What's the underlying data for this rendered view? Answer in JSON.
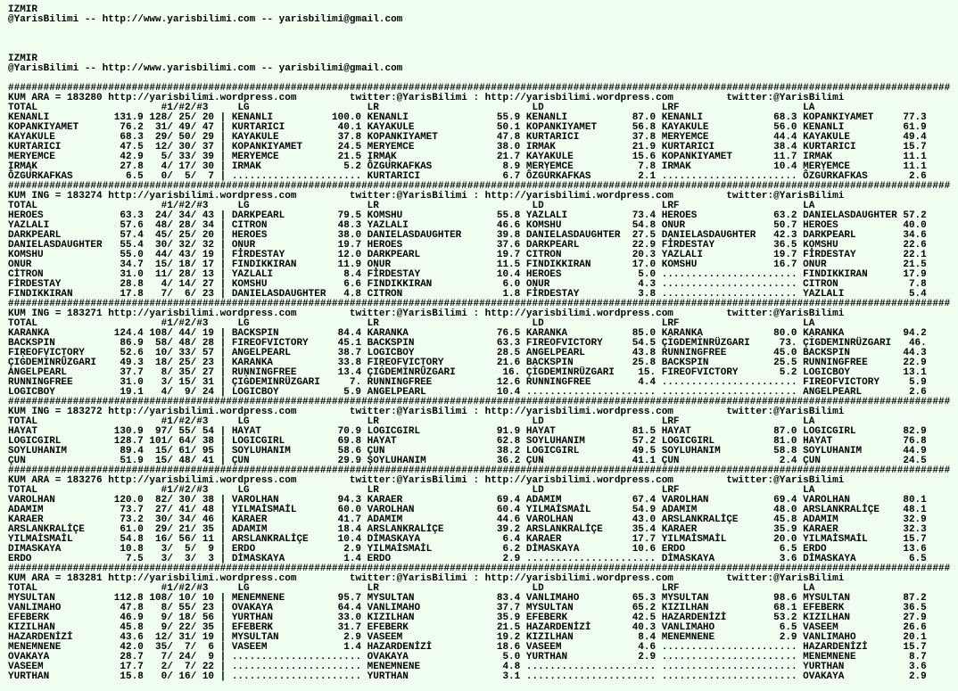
{
  "intro": [
    {
      "city": "IZMIR",
      "contact": "@YarisBilimi -- http://www.yarisbilimi.com -- yarisbilimi@gmail.com"
    },
    {
      "city": "IZMIR",
      "contact": "@YarisBilimi -- http://www.yarisbilimi.com -- yarisbilimi@gmail.com"
    }
  ],
  "rule_char": "#",
  "filler_char": ".",
  "count_sep": "/",
  "col_sep": "|",
  "link": {
    "url": "http://yarisbilimi.wordpress.com",
    "twitter": "twitter:@YarisBilimi",
    "sep": ":"
  },
  "header": {
    "total": "TOTAL",
    "counts": "#1/#2/#3",
    "cols": [
      "LG",
      "LR",
      "LD",
      "LRF",
      "LA"
    ]
  },
  "blocks": [
    {
      "title": "KUM ARA = 183280",
      "totals": [
        [
          "KENANLI",
          "131.9",
          128,
          25,
          20
        ],
        [
          "KOPANKIYAMET",
          "76.2",
          31,
          49,
          47
        ],
        [
          "KAYAKULE",
          "68.3",
          29,
          50,
          29
        ],
        [
          "KURTARICI",
          "47.5",
          12,
          30,
          37
        ],
        [
          "MERYEMCE",
          "42.9",
          5,
          33,
          39
        ],
        [
          "ĮRMĄK",
          "27.8",
          4,
          17,
          30
        ],
        [
          "ÖZGURKAFKAS",
          "6.5",
          0,
          5,
          7
        ]
      ],
      "cols": [
        [
          [
            "KENANLI",
            "100.0"
          ],
          [
            "KURTARICI",
            "40.1"
          ],
          [
            "KAYAKULE",
            "37.8"
          ],
          [
            "KOPANKIYAMET",
            "24.5"
          ],
          [
            "MERYEMCE",
            "21.5"
          ],
          [
            "IRMAK",
            "5.2"
          ],
          null
        ],
        [
          [
            "KENANLI",
            "55.9"
          ],
          [
            "KAYAKULE",
            "50.1"
          ],
          [
            "KOPANKIYAMET",
            "47.8"
          ],
          [
            "MERYEMCE",
            "38.0"
          ],
          [
            "ĮRMĄK",
            "21.7"
          ],
          [
            "ÖZGURKAFKAS",
            "8.9"
          ],
          [
            "KURTARICI",
            "6.7"
          ]
        ],
        [
          [
            "KENANLI",
            "87.0"
          ],
          [
            "KOPANKIYAMET",
            "56.8"
          ],
          [
            "KURTARICI",
            "37.8"
          ],
          [
            "IRMAK",
            "21.9"
          ],
          [
            "KAYAKULE",
            "15.6"
          ],
          [
            "ṂERỴEMCE",
            "7.8"
          ],
          [
            "ÖZGURKAFKAS",
            "2.1"
          ]
        ],
        [
          [
            "KENANLI",
            "68.3"
          ],
          [
            "KAYAKULE",
            "56.0"
          ],
          [
            "MERYEMCE",
            "44.4"
          ],
          [
            "KURTARICI",
            "38.4"
          ],
          [
            "KOPANKIYAMET",
            "11.7"
          ],
          [
            "IRMAK",
            "10.4"
          ],
          null
        ],
        [
          [
            "KOPANKIYAMET",
            "77.3"
          ],
          [
            "KENANLI",
            "61.9"
          ],
          [
            "KAYAKULE",
            "49.4"
          ],
          [
            "KURTARICI",
            "15.7"
          ],
          [
            "IRMAK",
            "11.1"
          ],
          [
            "ṂERỴEMCE",
            "11.1"
          ],
          [
            "ÖZGURKAFKAS",
            "2.6"
          ]
        ]
      ]
    },
    {
      "title": "KUM ING = 183274",
      "totals": [
        [
          "HEROES",
          "63.3",
          24,
          34,
          43
        ],
        [
          "YAZLALI",
          "57.6",
          48,
          28,
          34
        ],
        [
          "DARKPEARL",
          "57.4",
          45,
          25,
          20
        ],
        [
          "DANIELASDAUGHTER",
          "55.4",
          30,
          32,
          32
        ],
        [
          "KOMSHU",
          "55.0",
          44,
          43,
          19
        ],
        [
          "ONUR",
          "34.7",
          15,
          18,
          17
        ],
        [
          "CİTRON",
          "31.0",
          11,
          28,
          13
        ],
        [
          "FİRDESTAY",
          "28.8",
          4,
          14,
          27
        ],
        [
          "FINDIKKIRAN",
          "17.8",
          7,
          6,
          23
        ]
      ],
      "cols": [
        [
          [
            "DARKPEARL",
            "79.5"
          ],
          [
            "CITRON",
            "48.3"
          ],
          [
            "HEROES",
            "38.0"
          ],
          [
            "OṆUR",
            "19.7"
          ],
          [
            "FİRDESTAY",
            "12.0"
          ],
          [
            "FINDIKKIRAN",
            "11.9"
          ],
          [
            "YAZLALI",
            "8.4"
          ],
          [
            "KOMSHU",
            "6.6"
          ],
          [
            "DANIELASDAUGHTER",
            "4.8"
          ]
        ],
        [
          [
            "KOMSHU",
            "55.8"
          ],
          [
            "YAZLALI",
            "46.6"
          ],
          [
            "DANIELASDAUGHTER",
            "39.8"
          ],
          [
            "HEROES",
            "37.6"
          ],
          [
            "DARKPEARL",
            "19.7"
          ],
          [
            "OṆUR",
            "11.5"
          ],
          [
            "FİRDESTAY",
            "10.4"
          ],
          [
            "FINDIKKIRAN",
            "6.0"
          ],
          [
            "CITRON",
            "1.8"
          ]
        ],
        [
          [
            "YAZLALI",
            "73.4"
          ],
          [
            "KOMSHU",
            "54.8"
          ],
          [
            "DANIELASDAUGHTER",
            "27.5"
          ],
          [
            "DARKPEARL",
            "22.9"
          ],
          [
            "CITRON",
            "20.3"
          ],
          [
            "FINDIKKIRAN",
            "17.0"
          ],
          [
            "HEROES",
            "5.0"
          ],
          [
            "OṆUR",
            "4.3"
          ],
          [
            "FİRDESTAY",
            "3.8"
          ]
        ],
        [
          [
            "HEROES",
            "63.2"
          ],
          [
            "ONUR",
            "50.7"
          ],
          [
            "DẠNIELASDAUGHTER",
            "42.3"
          ],
          [
            "FİRDESTAY",
            "36.5"
          ],
          [
            "YAZLALI",
            "19.7"
          ],
          [
            "KOMSHU",
            "16.7"
          ],
          null,
          null,
          null
        ],
        [
          [
            "DANIELASDAUGHTER",
            "57.2"
          ],
          [
            "HEROES",
            "40.0"
          ],
          [
            "DARKPEARL",
            "34.6"
          ],
          [
            "KỌMSHU",
            "22.6"
          ],
          [
            "FİRDESTAY",
            "22.1"
          ],
          [
            "ONUR",
            "21.5"
          ],
          [
            "FINDIKKIRAN",
            "17.9"
          ],
          [
            "CITRON",
            "7.8"
          ],
          [
            "YAZLALI",
            "5.4"
          ]
        ]
      ]
    },
    {
      "title": "KUM ING = 183271",
      "totals": [
        [
          "KARANKA",
          "124.4",
          108,
          44,
          19
        ],
        [
          "BACKSPIN",
          "86.9",
          58,
          48,
          28
        ],
        [
          "FIṚEOFṾICṬORY",
          "52.6",
          10,
          33,
          57
        ],
        [
          "ÇIGDEMINRÜZGARI",
          "49.3",
          18,
          25,
          23
        ],
        [
          "ANGELPEARL",
          "37.7",
          8,
          35,
          27
        ],
        [
          "RUNNINGFREE",
          "31.0",
          3,
          15,
          31
        ],
        [
          "LOGICBOY",
          "19.1",
          4,
          9,
          24
        ]
      ],
      "cols": [
        [
          [
            "BACKSPIN",
            "84.4"
          ],
          [
            "FIREOFVICTORY",
            "45.1"
          ],
          [
            "ANGELPEARL",
            "38.7"
          ],
          [
            "KARANKA",
            "33.8"
          ],
          [
            "RUṆNINGFREE",
            "13.4"
          ],
          [
            "ÇIGDEMINRÜZGARI",
            "7."
          ],
          [
            "LOGICBOY",
            "5.9"
          ]
        ],
        [
          [
            "KARANKA",
            "76.5"
          ],
          [
            "BACKSPIN",
            "63.3"
          ],
          [
            "LOGICBOY",
            "28.5"
          ],
          [
            "FIṚEOFṾICṬORY",
            "21.6"
          ],
          [
            "ÇIGDEMINRÜZGARI",
            "16."
          ],
          [
            "RUNNINGFREE",
            "12.6"
          ],
          [
            "ANGELPEARL",
            "10.4"
          ]
        ],
        [
          [
            "KARANKA",
            "85.0"
          ],
          [
            "FIREOFVICTORY",
            "54.5"
          ],
          [
            "ANGELPEARL",
            "43.8"
          ],
          [
            "BẠCKSPIN",
            "25.8"
          ],
          [
            "ÇIGDEMINRÜZGARI",
            "15."
          ],
          [
            "RUNNINGFREE",
            "4.4"
          ],
          null
        ],
        [
          [
            "KẠRANKẠ",
            "80.0"
          ],
          [
            "ÇIGDEMINRÜZGARI",
            "73."
          ],
          [
            "RUNNINGFREE",
            "45.0"
          ],
          [
            "BACKSPIN",
            "25.5"
          ],
          [
            "FIREOFVICTORY",
            "5.2"
          ],
          null,
          null
        ],
        [
          [
            "KẠRANKA",
            "94.2"
          ],
          [
            "ÇIGDEMINRÜZGARI",
            "46."
          ],
          [
            "BACKSPIN",
            "44.3"
          ],
          [
            "RUNNINGFREE",
            "22.9"
          ],
          [
            "LOGICBOY",
            "13.1"
          ],
          [
            "FIREOFVICTORY",
            "5.9"
          ],
          [
            "ANGELPEARL",
            "2.6"
          ]
        ]
      ]
    },
    {
      "title": "KUM ING = 183272",
      "totals": [
        [
          "HAYAT",
          "130.9",
          97,
          55,
          54
        ],
        [
          "LOGICGIRL",
          "128.7",
          101,
          64,
          38
        ],
        [
          "SOYLUHANIM",
          "89.4",
          15,
          61,
          95
        ],
        [
          "ÇUN",
          "51.9",
          15,
          48,
          41
        ]
      ],
      "cols": [
        [
          [
            "HAYAT",
            "70.9"
          ],
          [
            "LOGICGIRL",
            "69.8"
          ],
          [
            "SOYLUHANIM",
            "58.6"
          ],
          [
            "ÇUN",
            "29.9"
          ]
        ],
        [
          [
            "LOGICGIRL",
            "91.9"
          ],
          [
            "HAYAT",
            "62.8"
          ],
          [
            "ÇUN",
            "38.2"
          ],
          [
            "ŞOYLUHANIM",
            "36.2"
          ]
        ],
        [
          [
            "HAYAT",
            "81.5"
          ],
          [
            "SOYLUHANIM",
            "57.2"
          ],
          [
            "LOGICGIRL",
            "49.5"
          ],
          [
            "ÇUN",
            "41.1"
          ]
        ],
        [
          [
            "HAYAT",
            "87.0"
          ],
          [
            "LOGICGIRL",
            "81.0"
          ],
          [
            "SOYLUHANIM",
            "58.8"
          ],
          [
            "ÇUN",
            "2.4"
          ]
        ],
        [
          [
            "LOGICGIRL",
            "82.9"
          ],
          [
            "HAYAT",
            "76.8"
          ],
          [
            "SOYLUHANIM",
            "44.9"
          ],
          [
            "ÇUN",
            "24.5"
          ]
        ]
      ]
    },
    {
      "title": "KUM ARA = 183276",
      "totals": [
        [
          "VAROLHAN",
          "120.0",
          82,
          30,
          38
        ],
        [
          "ADAMIM",
          "73.7",
          27,
          41,
          48
        ],
        [
          "KARAER",
          "73.2",
          30,
          34,
          46
        ],
        [
          "ARSLANKRALİÇE",
          "61.0",
          29,
          21,
          35
        ],
        [
          "YILMAİSMAİL",
          "54.8",
          16,
          56,
          11
        ],
        [
          "DIMASKAYA",
          "10.8",
          3,
          5,
          9
        ],
        [
          "ERDO",
          "7.5",
          3,
          3,
          3
        ]
      ],
      "cols": [
        [
          [
            "VAROLHAN",
            "94.3"
          ],
          [
            "YILMAİSMAİL",
            "60.0"
          ],
          [
            "KARAER",
            "41.7"
          ],
          [
            "ADAMIM",
            "18.4"
          ],
          [
            "ARSLANKRALİÇE",
            "10.4"
          ],
          [
            "ERDO",
            "2.9"
          ],
          [
            "DİMASKAYA",
            "1.4"
          ]
        ],
        [
          [
            "KARAER",
            "69.4"
          ],
          [
            "VAROLHAN",
            "60.4"
          ],
          [
            "ADAMIM",
            "44.6"
          ],
          [
            "ARSLANKRALİÇE",
            "39.2"
          ],
          [
            "DİMASKAYA",
            "6.4"
          ],
          [
            "YILMAİSMAİL",
            "6.2"
          ],
          [
            "ERDO",
            "2.9"
          ]
        ],
        [
          [
            "ADAMIM",
            "67.4"
          ],
          [
            "YILMAİSMAİL",
            "54.9"
          ],
          [
            "VAROLHAN",
            "43.0"
          ],
          [
            "ARSLANKRALİÇE",
            "35.4"
          ],
          [
            "KARAER",
            "17.7"
          ],
          [
            "DİMASKAYA",
            "10.6"
          ],
          null
        ],
        [
          [
            "VAROLHAN",
            "69.4"
          ],
          [
            "ADAMIM",
            "48.0"
          ],
          [
            "ARSLANKRALİÇE",
            "45.8"
          ],
          [
            "KARAER",
            "35.9"
          ],
          [
            "YILMAİSMAİL",
            "20.0"
          ],
          [
            "ERDO",
            "6.5"
          ],
          [
            "DİMASKAYA",
            "3.6"
          ]
        ],
        [
          [
            "VAROLHAN",
            "80.1"
          ],
          [
            "ARSLANKRALİÇE",
            "48.1"
          ],
          [
            "ADAMIM",
            "32.9"
          ],
          [
            "KARAER",
            "32.3"
          ],
          [
            "YILMAİSMAİL",
            "15.7"
          ],
          [
            "ERDO",
            "13.6"
          ],
          [
            "DİMASKAYA",
            "6.5"
          ]
        ]
      ]
    },
    {
      "title": "KUM ARA = 183281",
      "totals": [
        [
          "MYSULTAN",
          "112.8",
          108,
          10,
          10
        ],
        [
          "VANLIMAHO",
          "47.8",
          8,
          55,
          23
        ],
        [
          "EFEBERK",
          "46.9",
          9,
          18,
          56
        ],
        [
          "KIZILHAN",
          "45.8",
          9,
          22,
          35
        ],
        [
          "HAZARDENİZİ",
          "43.6",
          12,
          31,
          19
        ],
        [
          "MENEMNENE",
          "42.0",
          35,
          7,
          6
        ],
        [
          "OVAKAYA",
          "28.7",
          7,
          24,
          9
        ],
        [
          "VASEEM",
          "17.7",
          2,
          7,
          22
        ],
        [
          "YURTHAN",
          "15.8",
          0,
          16,
          10
        ]
      ],
      "cols": [
        [
          [
            "MENEMNENE",
            "95.7"
          ],
          [
            "OVAKAYA",
            "64.4"
          ],
          [
            "YURTHAN",
            "33.0"
          ],
          [
            "EFEBERK",
            "31.7"
          ],
          [
            "MYSULTAN",
            "2.9"
          ],
          [
            "VASEEM",
            "1.4"
          ],
          null,
          null,
          null
        ],
        [
          [
            "MYSULTAN",
            "83.4"
          ],
          [
            "VANLIMAHO",
            "37.7"
          ],
          [
            "KIZILHAN",
            "35.9"
          ],
          [
            "EFEBERK",
            "21.5"
          ],
          [
            "VASEEM",
            "19.2"
          ],
          [
            "HAZARDENİZİ",
            "18.6"
          ],
          [
            "OVAKAYA",
            "5.0"
          ],
          [
            "MENEMNENE",
            "4.8"
          ],
          [
            "YURTHAN",
            "3.1"
          ]
        ],
        [
          [
            "VANLIMAHO",
            "65.3"
          ],
          [
            "MYSULTAN",
            "65.2"
          ],
          [
            "EFEBERK",
            "42.5"
          ],
          [
            "HAZARDENİZİ",
            "40.3"
          ],
          [
            "KIZILHAN",
            "8.4"
          ],
          [
            "VASEEM",
            "4.6"
          ],
          [
            "YURTHAN",
            "2.9"
          ],
          null,
          null
        ],
        [
          [
            "MYSULTAN",
            "98.6"
          ],
          [
            "KIZILHAN",
            "68.1"
          ],
          [
            "HAZARDENİZİ",
            "53.2"
          ],
          [
            "VANLIMAHO",
            "6.5"
          ],
          [
            "MENEMNENE",
            "2.9"
          ],
          null,
          null,
          null,
          null
        ],
        [
          [
            "MYSULTAN",
            "87.2"
          ],
          [
            "EFEBERK",
            "36.5"
          ],
          [
            "KIZILHAN",
            "27.9"
          ],
          [
            "VASEEM",
            "26.6"
          ],
          [
            "VANLIMAHO",
            "20.1"
          ],
          [
            "HAZARDENİZİ",
            "15.7"
          ],
          [
            "MENEMNENE",
            "8.7"
          ],
          [
            "YURTHAN",
            "3.6"
          ],
          [
            "OVAKAYA",
            "2.9"
          ]
        ]
      ]
    }
  ]
}
